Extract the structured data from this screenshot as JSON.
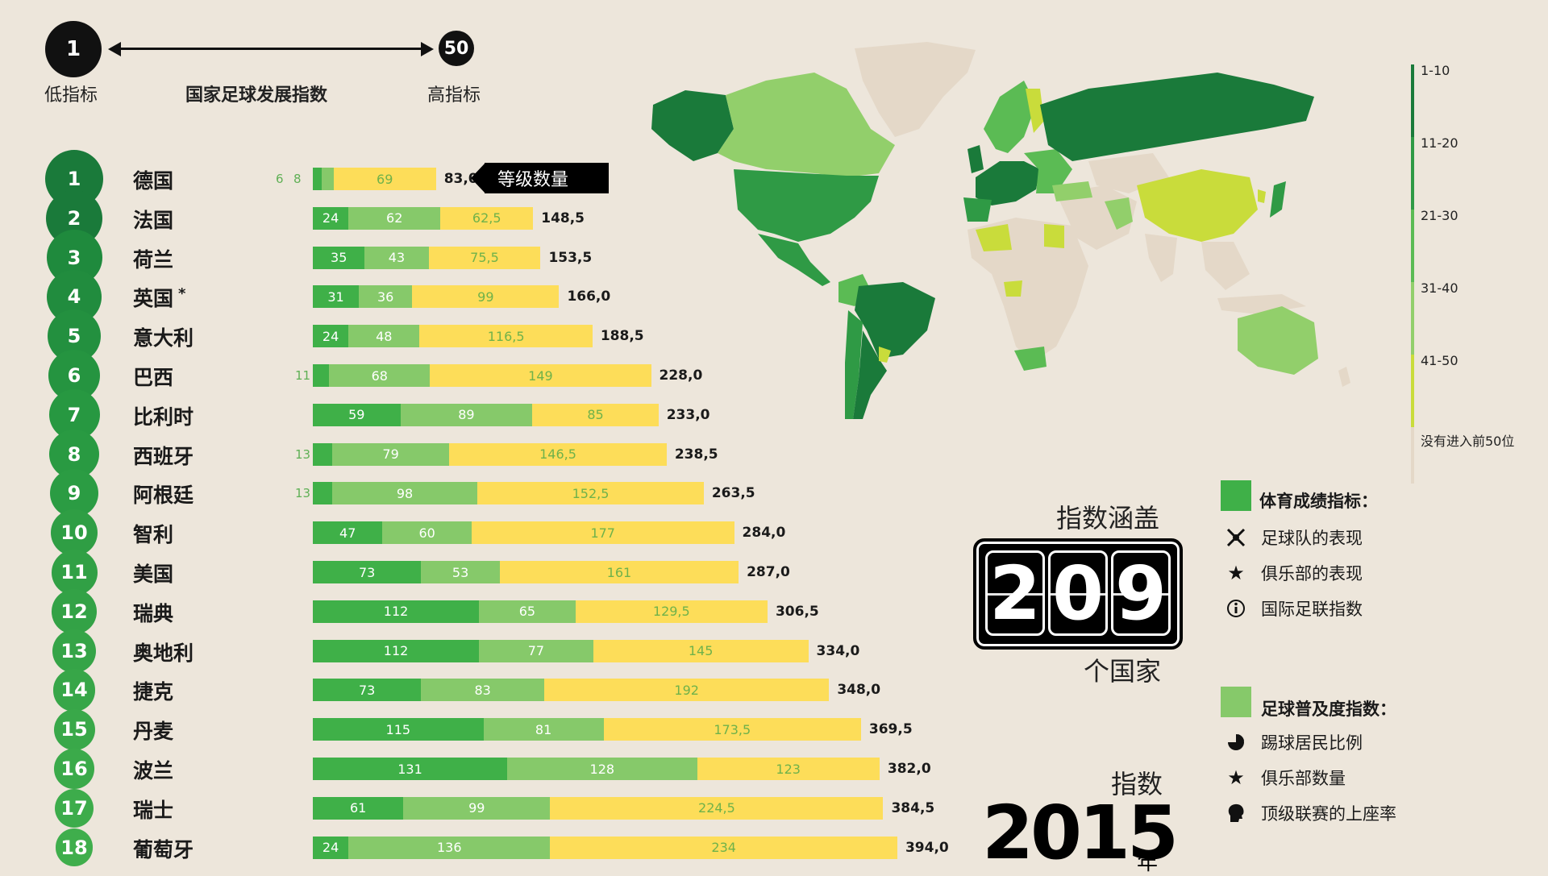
{
  "scale": {
    "low_value": "1",
    "high_value": "50",
    "low_label": "低指标",
    "high_label": "高指标",
    "title": "国家足球发展指数"
  },
  "callout_label": "等级数量",
  "map_legend": {
    "ranges": [
      {
        "label": "1-10",
        "color": "#1a7a3a"
      },
      {
        "label": "11-20",
        "color": "#2f9a45"
      },
      {
        "label": "21-30",
        "color": "#5bbb54"
      },
      {
        "label": "31-40",
        "color": "#92cf6b"
      },
      {
        "label": "41-50",
        "color": "#c9dc3b"
      }
    ],
    "not_top50_label": "没有进入前50位",
    "not_top50_color": "#e4d8c8"
  },
  "coverage": {
    "top_text": "指数涵盖",
    "digits": [
      "2",
      "0",
      "9"
    ],
    "bottom_text": "个国家"
  },
  "index_year": {
    "label": "指数",
    "year": "2015",
    "suffix": "年"
  },
  "legend": {
    "group1": {
      "title": "体育成绩指标：",
      "color": "#3fb048",
      "items": [
        {
          "label": "足球队的表现",
          "icon": "trophy-cross-icon"
        },
        {
          "label": "俱乐部的表现",
          "icon": "star-icon"
        },
        {
          "label": "国际足联指数",
          "icon": "info-circle-icon"
        }
      ]
    },
    "group2": {
      "title": "足球普及度指数：",
      "color": "#86c96a",
      "items": [
        {
          "label": "踢球居民比例",
          "icon": "pie-chart-icon"
        },
        {
          "label": "俱乐部数量",
          "icon": "star-icon"
        },
        {
          "label": "顶级联赛的上座率",
          "icon": "head-icon"
        }
      ]
    }
  },
  "chart_data": {
    "type": "bar",
    "stacked": true,
    "series_colors": [
      "#3fb048",
      "#86c96a",
      "#fddd59"
    ],
    "rows": [
      {
        "rank": "1",
        "country": "德国",
        "values": [
          6,
          8,
          69
        ],
        "total": "83,0",
        "labels": [
          "6",
          "8",
          "69"
        ],
        "asterisk": ""
      },
      {
        "rank": "2",
        "country": "法国",
        "values": [
          24,
          62,
          62.5
        ],
        "total": "148,5",
        "labels": [
          "24",
          "62",
          "62,5"
        ],
        "asterisk": ""
      },
      {
        "rank": "3",
        "country": "荷兰",
        "values": [
          35,
          43,
          75.5
        ],
        "total": "153,5",
        "labels": [
          "35",
          "43",
          "75,5"
        ],
        "asterisk": ""
      },
      {
        "rank": "4",
        "country": "英国",
        "values": [
          31,
          36,
          99
        ],
        "total": "166,0",
        "labels": [
          "31",
          "36",
          "99"
        ],
        "asterisk": "*"
      },
      {
        "rank": "5",
        "country": "意大利",
        "values": [
          24,
          48,
          116.5
        ],
        "total": "188,5",
        "labels": [
          "24",
          "48",
          "116,5"
        ],
        "asterisk": ""
      },
      {
        "rank": "6",
        "country": "巴西",
        "values": [
          11,
          68,
          149
        ],
        "total": "228,0",
        "labels": [
          "11",
          "68",
          "149"
        ],
        "asterisk": ""
      },
      {
        "rank": "7",
        "country": "比利时",
        "values": [
          59,
          89,
          85
        ],
        "total": "233,0",
        "labels": [
          "59",
          "89",
          "85"
        ],
        "asterisk": ""
      },
      {
        "rank": "8",
        "country": "西班牙",
        "values": [
          13,
          79,
          146.5
        ],
        "total": "238,5",
        "labels": [
          "13",
          "79",
          "146,5"
        ],
        "asterisk": ""
      },
      {
        "rank": "9",
        "country": "阿根廷",
        "values": [
          13,
          98,
          152.5
        ],
        "total": "263,5",
        "labels": [
          "13",
          "98",
          "152,5"
        ],
        "asterisk": ""
      },
      {
        "rank": "10",
        "country": "智利",
        "values": [
          47,
          60,
          177
        ],
        "total": "284,0",
        "labels": [
          "47",
          "60",
          "177"
        ],
        "asterisk": ""
      },
      {
        "rank": "11",
        "country": "美国",
        "values": [
          73,
          53,
          161
        ],
        "total": "287,0",
        "labels": [
          "73",
          "53",
          "161"
        ],
        "asterisk": ""
      },
      {
        "rank": "12",
        "country": "瑞典",
        "values": [
          112,
          65,
          129.5
        ],
        "total": "306,5",
        "labels": [
          "112",
          "65",
          "129,5"
        ],
        "asterisk": ""
      },
      {
        "rank": "13",
        "country": "奥地利",
        "values": [
          112,
          77,
          145
        ],
        "total": "334,0",
        "labels": [
          "112",
          "77",
          "145"
        ],
        "asterisk": ""
      },
      {
        "rank": "14",
        "country": "捷克",
        "values": [
          73,
          83,
          192
        ],
        "total": "348,0",
        "labels": [
          "73",
          "83",
          "192"
        ],
        "asterisk": ""
      },
      {
        "rank": "15",
        "country": "丹麦",
        "values": [
          115,
          81,
          173.5
        ],
        "total": "369,5",
        "labels": [
          "115",
          "81",
          "173,5"
        ],
        "asterisk": ""
      },
      {
        "rank": "16",
        "country": "波兰",
        "values": [
          131,
          128,
          123
        ],
        "total": "382,0",
        "labels": [
          "131",
          "128",
          "123"
        ],
        "asterisk": ""
      },
      {
        "rank": "17",
        "country": "瑞士",
        "values": [
          61,
          99,
          224.5
        ],
        "total": "384,5",
        "labels": [
          "61",
          "99",
          "224,5"
        ],
        "asterisk": ""
      },
      {
        "rank": "18",
        "country": "葡萄牙",
        "values": [
          24,
          136,
          234
        ],
        "total": "394,0",
        "labels": [
          "24",
          "136",
          "234"
        ],
        "asterisk": ""
      }
    ]
  }
}
